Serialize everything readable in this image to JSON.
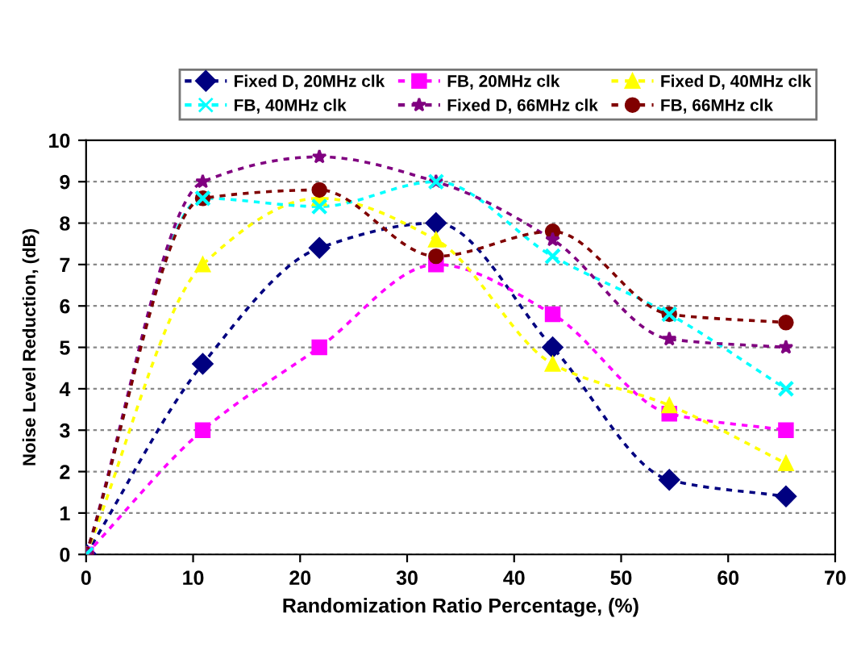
{
  "chart_data": {
    "type": "line",
    "xlabel": "Randomization Ratio Percentage, (%)",
    "ylabel": "Noise Level Reduction, (dB)",
    "x": [
      0,
      10.9,
      21.8,
      32.7,
      43.6,
      54.5,
      65.4
    ],
    "series": [
      {
        "name": "Fixed D, 20MHz clk",
        "color": "#000080",
        "marker": "diamond",
        "values": [
          0,
          4.6,
          7.4,
          8.0,
          5.0,
          1.8,
          1.4
        ]
      },
      {
        "name": "FB, 20MHz clk",
        "color": "#ff00ff",
        "marker": "square",
        "values": [
          0,
          3.0,
          5.0,
          7.0,
          5.8,
          3.4,
          3.0
        ]
      },
      {
        "name": "Fixed D, 40MHz clk",
        "color": "#ffff00",
        "marker": "triangle",
        "values": [
          0,
          7.0,
          8.6,
          7.6,
          4.6,
          3.6,
          2.2
        ]
      },
      {
        "name": "FB, 40MHz clk",
        "color": "#00ffff",
        "marker": "cross",
        "values": [
          0,
          8.6,
          8.4,
          9.0,
          7.2,
          5.8,
          4.0
        ]
      },
      {
        "name": "Fixed D, 66MHz clk",
        "color": "#800080",
        "marker": "star",
        "values": [
          0,
          9.0,
          9.6,
          9.0,
          7.6,
          5.2,
          5.0
        ]
      },
      {
        "name": "FB, 66MHz clk",
        "color": "#800000",
        "marker": "circle",
        "values": [
          0,
          8.6,
          8.8,
          7.2,
          7.8,
          5.8,
          5.6
        ]
      }
    ],
    "xlim": [
      0,
      70
    ],
    "xticks": [
      0,
      10,
      20,
      30,
      40,
      50,
      60,
      70
    ],
    "ylim": [
      0,
      10
    ],
    "yticks": [
      0,
      1,
      2,
      3,
      4,
      5,
      6,
      7,
      8,
      9,
      10
    ],
    "grid": "y",
    "legend": "top",
    "line_style": "dashed"
  }
}
